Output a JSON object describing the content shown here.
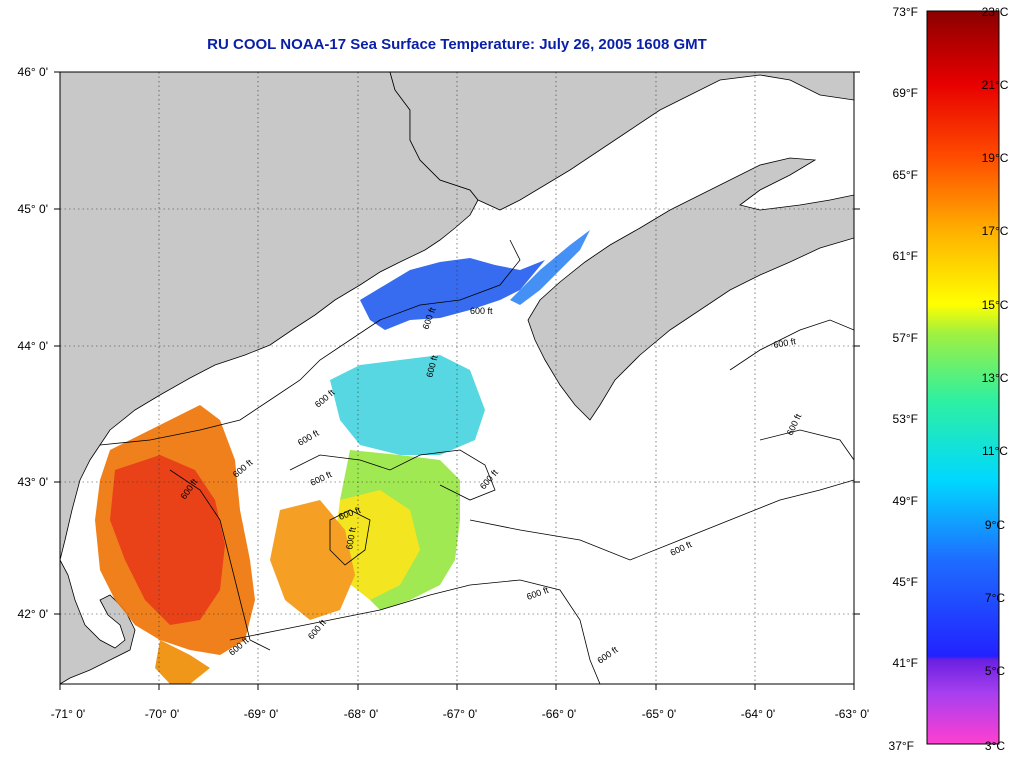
{
  "title": "RU COOL  NOAA-17  Sea Surface Temperature:  July 26, 2005 1608 GMT",
  "map": {
    "lat_labels": [
      "46° 0'",
      "45° 0'",
      "44° 0'",
      "43° 0'",
      "42° 0'"
    ],
    "lon_labels": [
      "-71° 0'",
      "-70° 0'",
      "-69° 0'",
      "-68° 0'",
      "-67° 0'",
      "-66° 0'",
      "-65° 0'",
      "-64° 0'",
      "-63° 0'"
    ],
    "lat_range": [
      41.5,
      46.2
    ],
    "lon_range": [
      -71.0,
      -63.0
    ],
    "grid": "dotted",
    "land_color": "#c8c8c8",
    "no_data_color": "#ffffff",
    "contour_labels": [
      "600 ft",
      "600 ft",
      "600 ft",
      "600 ft",
      "600 ft",
      "600 ft",
      "600 ft",
      "600 ft",
      "600 ft",
      "600 ft",
      "600 ft",
      "600 ft",
      "600 ft",
      "600 ft",
      "600 ft",
      "600 ft",
      "600 ft",
      "600 ft"
    ]
  },
  "colorbar": {
    "fahrenheit_labels": [
      "73°F",
      "69°F",
      "65°F",
      "61°F",
      "57°F",
      "53°F",
      "49°F",
      "45°F",
      "41°F",
      "37°F"
    ],
    "celsius_labels": [
      "23°C",
      "21°C",
      "19°C",
      "17°C",
      "15°C",
      "13°C",
      "11°C",
      "9°C",
      "7°C",
      "5°C",
      "3°C"
    ],
    "range_celsius": [
      3,
      23
    ],
    "range_fahrenheit": [
      37,
      73
    ]
  }
}
